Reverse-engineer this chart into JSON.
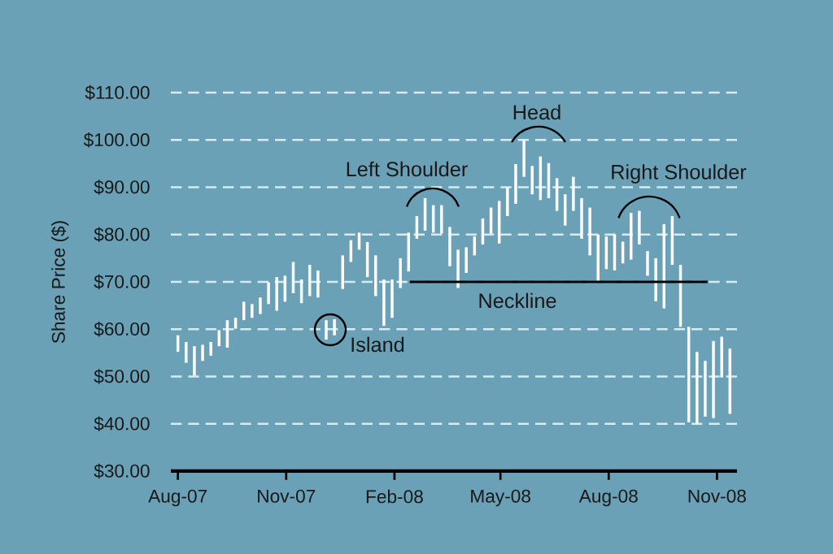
{
  "chart_data": {
    "type": "bar",
    "ylabel": "Share Price ($)",
    "x": [
      "2007-08-01",
      "2007-08-08",
      "2007-08-15",
      "2007-08-22",
      "2007-08-29",
      "2007-09-05",
      "2007-09-12",
      "2007-09-19",
      "2007-09-26",
      "2007-10-03",
      "2007-10-10",
      "2007-10-17",
      "2007-10-24",
      "2007-10-31",
      "2007-11-07",
      "2007-11-14",
      "2007-11-21",
      "2007-11-28",
      "2007-12-05",
      "2007-12-12",
      "2007-12-19",
      "2007-12-26",
      "2008-01-02",
      "2008-01-09",
      "2008-01-16",
      "2008-01-23",
      "2008-01-30",
      "2008-02-06",
      "2008-02-13",
      "2008-02-20",
      "2008-02-27",
      "2008-03-05",
      "2008-03-12",
      "2008-03-19",
      "2008-03-26",
      "2008-04-02",
      "2008-04-09",
      "2008-04-16",
      "2008-04-23",
      "2008-04-30",
      "2008-05-07",
      "2008-05-14",
      "2008-05-21",
      "2008-05-28",
      "2008-06-04",
      "2008-06-11",
      "2008-06-18",
      "2008-06-25",
      "2008-07-02",
      "2008-07-09",
      "2008-07-16",
      "2008-07-23",
      "2008-07-30",
      "2008-08-06",
      "2008-08-13",
      "2008-08-20",
      "2008-08-27",
      "2008-09-03",
      "2008-09-10",
      "2008-09-17",
      "2008-09-24",
      "2008-10-01",
      "2008-10-08",
      "2008-10-15",
      "2008-10-22",
      "2008-10-29",
      "2008-11-05",
      "2008-11-12"
    ],
    "series": [
      {
        "color": "#ffffff",
        "base": [
          55.2,
          52.9,
          50.2,
          53.3,
          54.4,
          56.4,
          56.1,
          60.1,
          61.9,
          62.4,
          63.2,
          65.3,
          63.9,
          65.8,
          67.6,
          65.5,
          67.0,
          66.7,
          57.8,
          58.7,
          68.5,
          74.2,
          76.8,
          71.0,
          67.0,
          60.7,
          62.4,
          68.7,
          72.2,
          79.1,
          80.8,
          80.4,
          80.2,
          73.3,
          68.7,
          71.9,
          75.6,
          77.9,
          80.2,
          78.1,
          83.9,
          86.5,
          92.2,
          88.5,
          87.3,
          87.7,
          85.0,
          81.9,
          85.0,
          79.1,
          75.6,
          70.1,
          72.7,
          72.4,
          73.9,
          74.7,
          77.9,
          71.3,
          65.9,
          64.4,
          73.6,
          60.5,
          40.3,
          39.9,
          41.5,
          41.2,
          49.8,
          42.1
        ],
        "values": [
          3.5,
          4.4,
          6.2,
          3.4,
          2.9,
          3.4,
          5.8,
          2.3,
          3.9,
          2.9,
          3.5,
          4.6,
          7.1,
          5.5,
          6.6,
          5.0,
          6.6,
          5.7,
          4.1,
          3.4,
          7.1,
          4.6,
          3.6,
          7.4,
          8.6,
          9.8,
          8.1,
          6.3,
          8.2,
          4.8,
          6.9,
          5.8,
          6.0,
          8.3,
          8.1,
          5.4,
          4.0,
          5.5,
          5.5,
          9.0,
          6.0,
          8.4,
          7.7,
          6.0,
          9.2,
          7.4,
          6.9,
          6.6,
          7.2,
          8.6,
          10.1,
          9.9,
          6.9,
          7.6,
          4.6,
          9.9,
          7.1,
          5.2,
          9.1,
          17.8,
          10.3,
          13.1,
          20.2,
          15.3,
          11.8,
          16.3,
          8.6,
          13.8
        ]
      },
      {
        "type": "line",
        "color": "#000000",
        "x": [
          "2008-02-14",
          "2008-10-24"
        ],
        "values": [
          70,
          70
        ]
      }
    ],
    "xlim": [
      "2007-07-26",
      "2008-11-18"
    ],
    "xticks": [
      {
        "value": "2007-08-01",
        "label": "Aug-07"
      },
      {
        "value": "2007-11-01",
        "label": "Nov-07"
      },
      {
        "value": "2008-02-01",
        "label": "Feb-08"
      },
      {
        "value": "2008-05-01",
        "label": "May-08"
      },
      {
        "value": "2008-08-01",
        "label": "Aug-08"
      },
      {
        "value": "2008-11-01",
        "label": "Nov-08"
      }
    ],
    "ylim": [
      30,
      110
    ],
    "yticks": [
      {
        "value": 30,
        "label": "$30.00"
      },
      {
        "value": 40,
        "label": "$40.00"
      },
      {
        "value": 50,
        "label": "$50.00"
      },
      {
        "value": 60,
        "label": "$60.00"
      },
      {
        "value": 70,
        "label": "$70.00"
      },
      {
        "value": 80,
        "label": "$80.00"
      },
      {
        "value": 90,
        "label": "$90.00"
      },
      {
        "value": 100,
        "label": "$100.00"
      },
      {
        "value": 110,
        "label": "$110.00"
      }
    ],
    "grid": "y",
    "annotations": [
      "Left Shoulder",
      "Head",
      "Right Shoulder",
      "Island",
      "Neckline"
    ]
  }
}
